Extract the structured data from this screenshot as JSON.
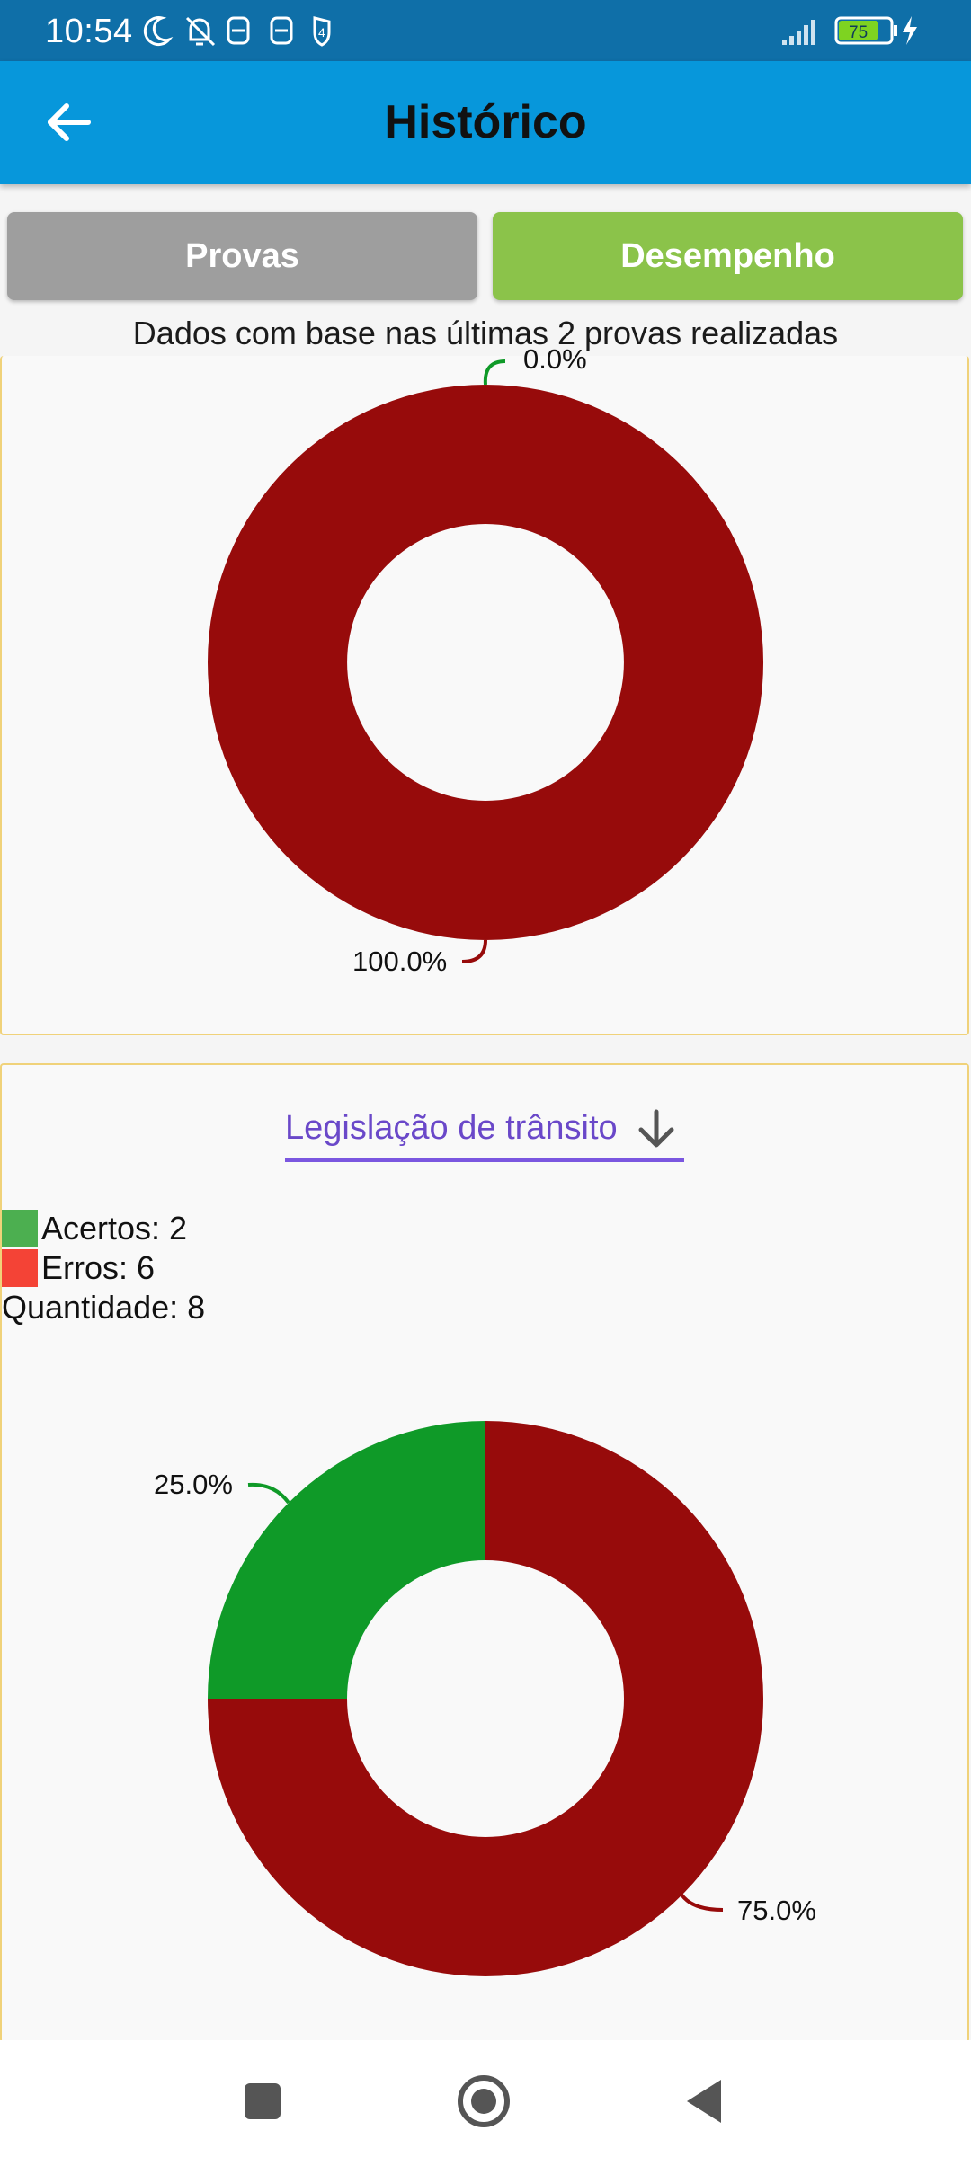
{
  "status_bar": {
    "time": "10:54",
    "battery": "75"
  },
  "app_bar": {
    "title": "Histórico",
    "back_icon": "arrow-left-icon"
  },
  "tabs": [
    {
      "label": "Provas",
      "color": "#9e9e9e"
    },
    {
      "label": "Desempenho",
      "color": "#8bc34a"
    }
  ],
  "subtitle": "Dados com base nas últimas 2 provas realizadas",
  "colors": {
    "correct": "#0f9a28",
    "wrong": "#970b0b",
    "legend_correct": "#4caf50",
    "legend_wrong": "#f44336",
    "accent": "#7b57e0"
  },
  "section2": {
    "category": "Legislação de trânsito",
    "legend": {
      "acertos": "Acertos: 2",
      "erros": "Erros: 6",
      "quantidade": "Quantidade: 8"
    }
  },
  "chart_data": [
    {
      "type": "pie",
      "categories": [
        "Acertos",
        "Erros"
      ],
      "values": [
        0.0,
        100.0
      ],
      "labels": [
        "0.0%",
        "100.0%"
      ]
    },
    {
      "type": "pie",
      "categories": [
        "Acertos",
        "Erros"
      ],
      "values": [
        25.0,
        75.0
      ],
      "labels": [
        "25.0%",
        "75.0%"
      ]
    }
  ],
  "nav_bar": {
    "recents_icon": "square-icon",
    "home_icon": "circle-home-icon",
    "back_icon": "triangle-back-icon"
  }
}
